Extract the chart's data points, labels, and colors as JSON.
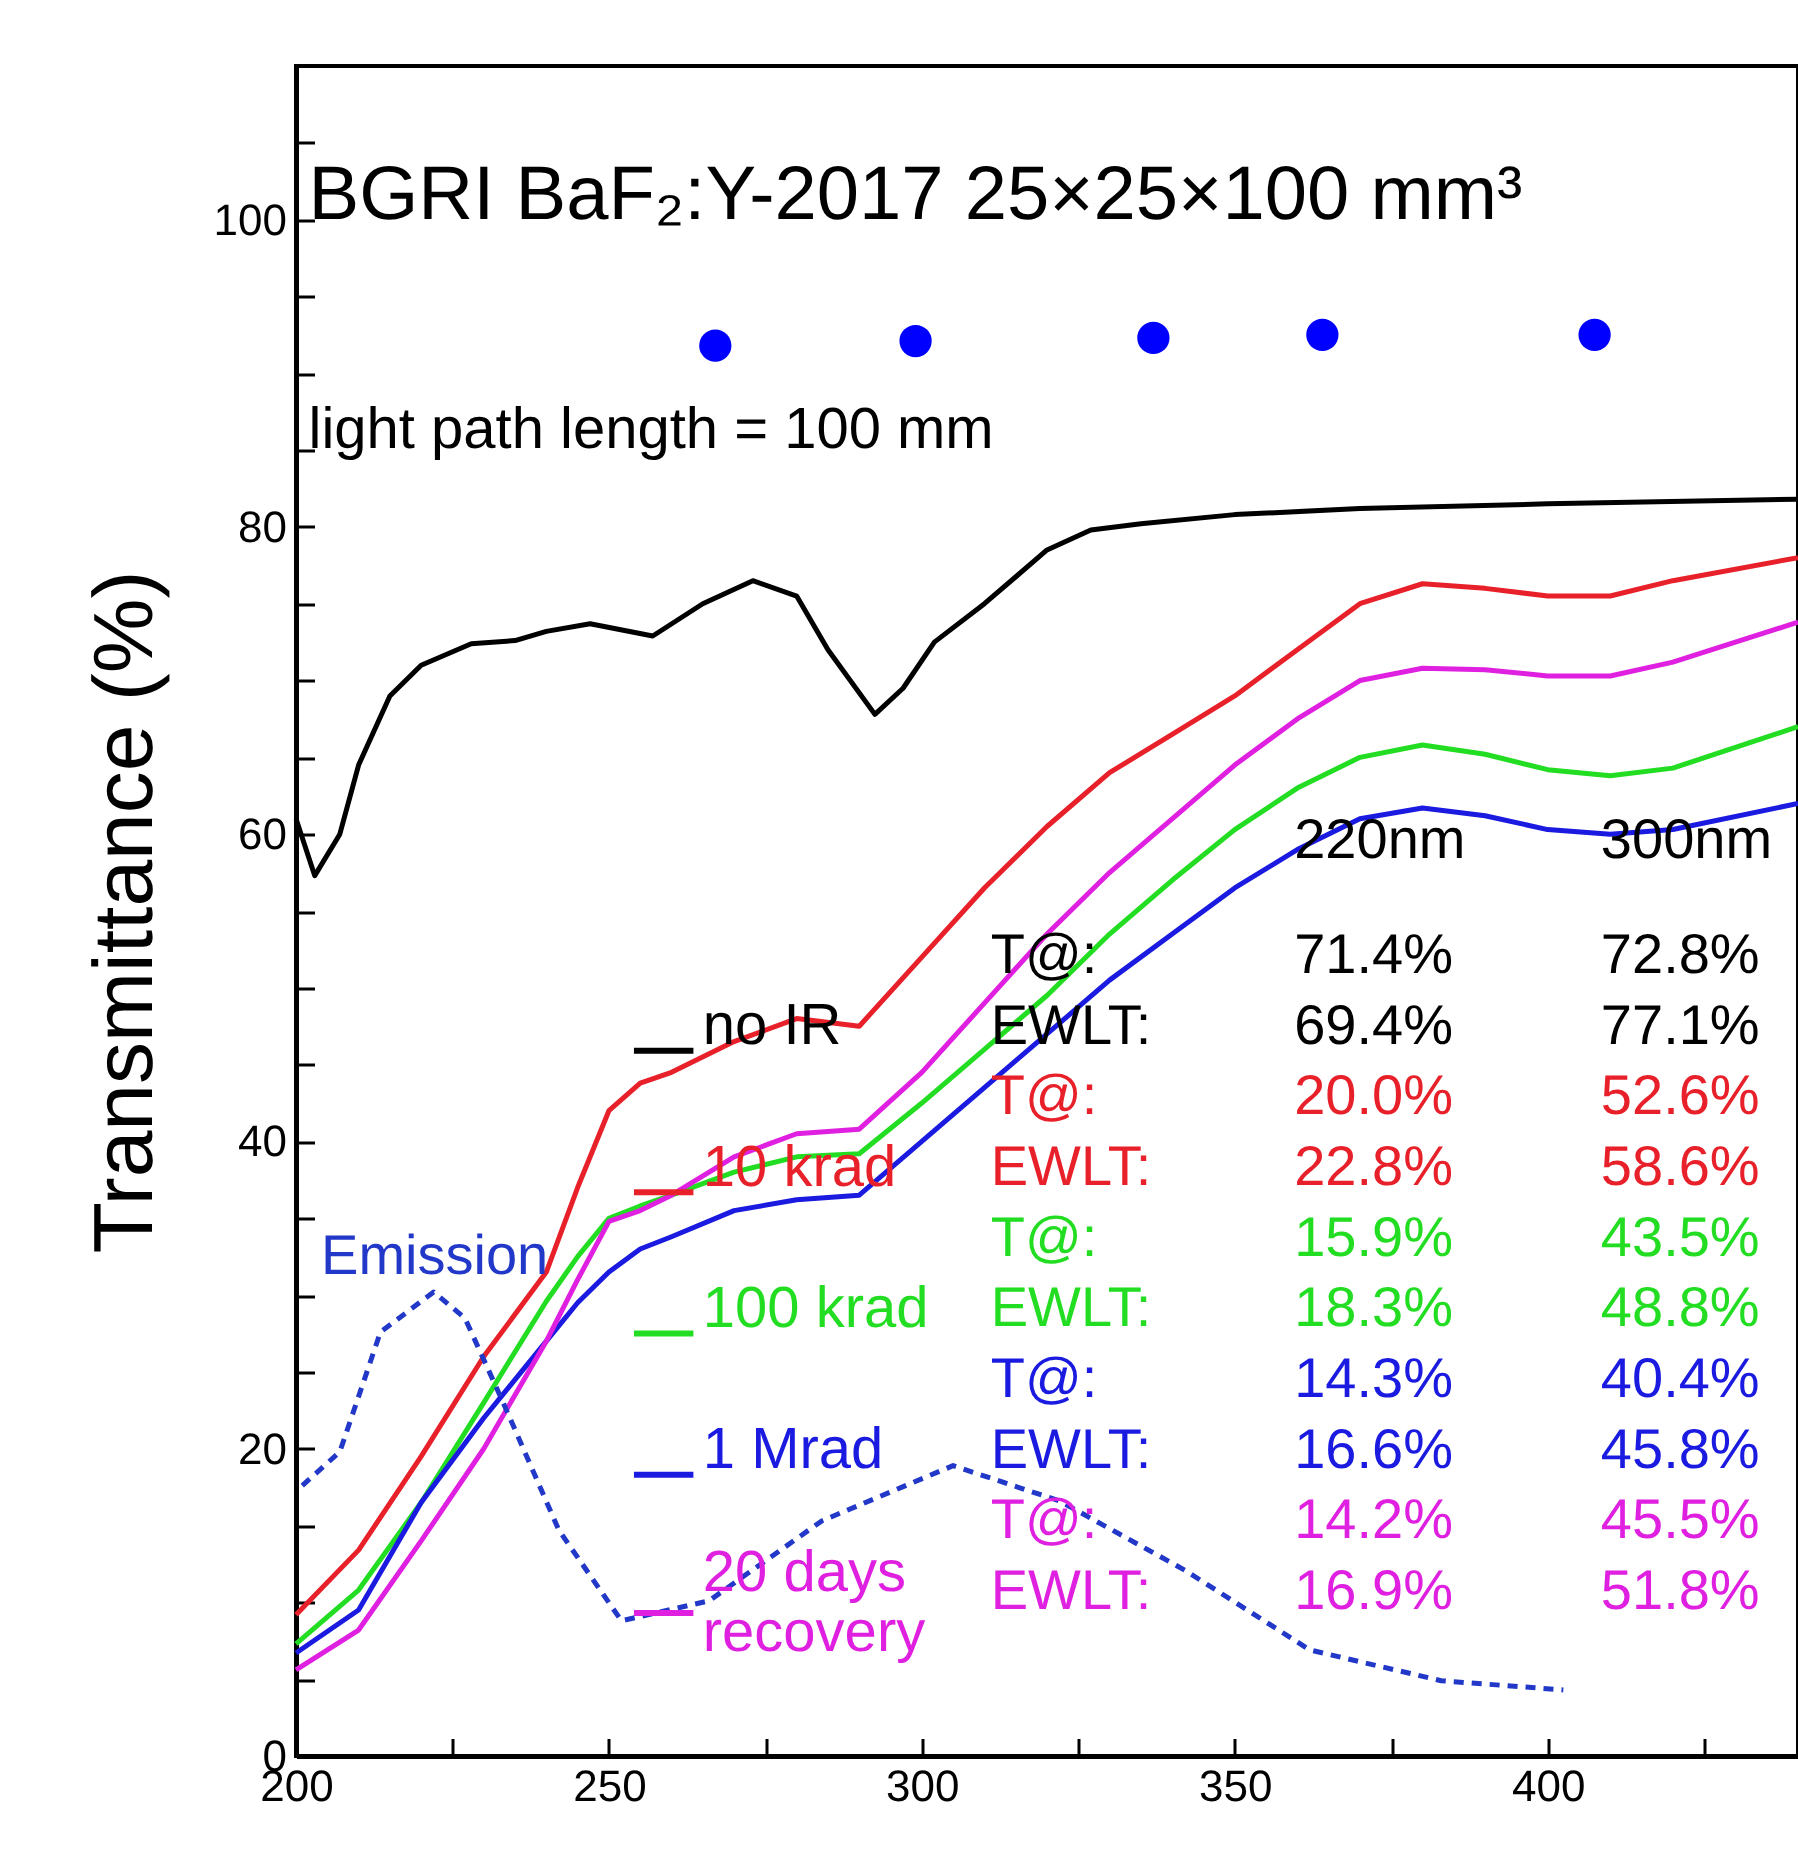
{
  "chart_data": {
    "type": "line",
    "title": "BGRI  BaF₂:Y-2017   25×25×100 mm³",
    "ylabel": "Transmittance (%)",
    "xlim": [
      200,
      440
    ],
    "ylim": [
      0,
      110
    ],
    "xticks": [
      200,
      {
        "value": 225,
        "label": null
      },
      250,
      {
        "value": 275,
        "label": null
      },
      300,
      {
        "value": 325,
        "label": null
      },
      350,
      {
        "value": 375,
        "label": null
      },
      400,
      {
        "value": 425,
        "label": null
      }
    ],
    "yticks": [
      0,
      {
        "value": 5,
        "label": null
      },
      {
        "value": 10,
        "label": null
      },
      {
        "value": 15,
        "label": null
      },
      20,
      {
        "value": 25,
        "label": null
      },
      {
        "value": 30,
        "label": null
      },
      {
        "value": 35,
        "label": null
      },
      40,
      {
        "value": 45,
        "label": null
      },
      {
        "value": 50,
        "label": null
      },
      {
        "value": 55,
        "label": null
      },
      60,
      {
        "value": 65,
        "label": null
      },
      {
        "value": 70,
        "label": null
      },
      {
        "value": 75,
        "label": null
      },
      80,
      {
        "value": 85,
        "label": null
      },
      {
        "value": 90,
        "label": null
      },
      {
        "value": 95,
        "label": null
      },
      100,
      {
        "value": 105,
        "label": null
      }
    ],
    "legend": "bottom",
    "line_style": "solid",
    "series": [
      {
        "name": "no IR",
        "color": "#000000",
        "x": [
          200,
          203,
          207,
          210,
          215,
          220,
          228,
          235,
          240,
          247,
          257,
          265,
          273,
          280,
          285,
          292.5,
          297,
          302,
          310,
          320,
          327,
          335,
          350,
          370,
          400,
          440
        ],
        "values": [
          61,
          57.3,
          60,
          64.5,
          69,
          71,
          72.4,
          72.6,
          73.2,
          73.7,
          72.9,
          75,
          76.5,
          75.5,
          72,
          67.8,
          69.5,
          72.5,
          75,
          78.5,
          79.8,
          80.2,
          80.8,
          81.2,
          81.5,
          81.8
        ]
      },
      {
        "name": "10 krad",
        "color": "#e8202a",
        "x": [
          200,
          210,
          220,
          230,
          240,
          245,
          250,
          255,
          260,
          270,
          280,
          290,
          300,
          310,
          320,
          330,
          340,
          350,
          360,
          370,
          380,
          390,
          400,
          410,
          420,
          440
        ],
        "values": [
          9.2,
          13.4,
          19.5,
          26,
          31.5,
          37,
          42,
          43.8,
          44.5,
          46.5,
          48,
          47.5,
          52,
          56.5,
          60.5,
          64,
          66.5,
          69,
          72,
          75,
          76.3,
          76,
          75.5,
          75.5,
          76.5,
          78
        ]
      },
      {
        "name": "100 krad",
        "color": "#22dd22",
        "x": [
          200,
          210,
          220,
          230,
          240,
          245,
          250,
          255,
          260,
          270,
          280,
          290,
          300,
          310,
          320,
          330,
          340,
          350,
          360,
          370,
          380,
          390,
          400,
          410,
          420,
          440
        ],
        "values": [
          7.3,
          10.8,
          16.5,
          23,
          29.6,
          32.5,
          35,
          35.8,
          36.5,
          38,
          39,
          39.2,
          42.5,
          46,
          49.5,
          53.5,
          57,
          60.3,
          63,
          65,
          65.8,
          65.2,
          64.2,
          63.8,
          64.3,
          67
        ]
      },
      {
        "name": "1 Mrad",
        "color": "#1a1ae0",
        "x": [
          200,
          210,
          220,
          230,
          240,
          245,
          250,
          255,
          260,
          270,
          280,
          290,
          300,
          310,
          320,
          330,
          340,
          350,
          360,
          370,
          380,
          390,
          400,
          410,
          420,
          440
        ],
        "values": [
          6.7,
          9.5,
          16.5,
          22,
          27,
          29.5,
          31.5,
          33,
          33.8,
          35.5,
          36.2,
          36.5,
          40,
          43.5,
          47,
          50.5,
          53.5,
          56.5,
          59,
          61,
          61.7,
          61.2,
          60.3,
          60,
          60.3,
          62
        ]
      },
      {
        "name": "20 days recovery",
        "color": "#e020e0",
        "x": [
          200,
          210,
          220,
          230,
          240,
          245,
          250,
          255,
          260,
          270,
          280,
          290,
          300,
          310,
          320,
          330,
          340,
          350,
          360,
          370,
          380,
          390,
          400,
          410,
          420,
          440
        ],
        "values": [
          5.6,
          8.2,
          14,
          20,
          27,
          31,
          34.8,
          35.5,
          36.5,
          39,
          40.5,
          40.8,
          44.5,
          49,
          53.5,
          57.5,
          61,
          64.5,
          67.5,
          70,
          70.8,
          70.7,
          70.3,
          70.3,
          71.2,
          73.8
        ]
      },
      {
        "name": "Emission",
        "color": "#2238c8",
        "line_style": "dashed",
        "x": [
          201,
          207,
          213.5,
          222,
          227,
          233,
          242,
          252,
          266,
          284,
          305,
          322,
          342,
          362,
          383,
          402.5
        ],
        "values": [
          17.6,
          19.8,
          27.6,
          30.2,
          28.5,
          23.1,
          14.7,
          8.8,
          10.1,
          15.3,
          18.9,
          16.6,
          12.1,
          6.9,
          4.9,
          4.3
        ]
      },
      {
        "type": "scatter",
        "marker": "circle",
        "color": "#0000ff",
        "x": [
          267,
          299,
          337,
          364,
          407.5
        ],
        "values": [
          91.8,
          92.1,
          92.3,
          92.5,
          92.5
        ]
      }
    ],
    "annotations": [
      "light path length = 100 mm",
      "220nm",
      "300nm",
      "T@:",
      "71.4%",
      "72.8%",
      "EWLT:",
      "69.4%",
      "77.1%",
      "T@:",
      "20.0%",
      "52.6%",
      "EWLT:",
      "22.8%",
      "58.6%",
      "T@:",
      "15.9%",
      "43.5%",
      "EWLT:",
      "18.3%",
      "48.8%",
      "T@:",
      "14.3%",
      "40.4%",
      "EWLT:",
      "16.6%",
      "45.8%",
      "T@:",
      "14.2%",
      "45.5%",
      "EWLT:",
      "16.9%",
      "51.8%"
    ]
  }
}
